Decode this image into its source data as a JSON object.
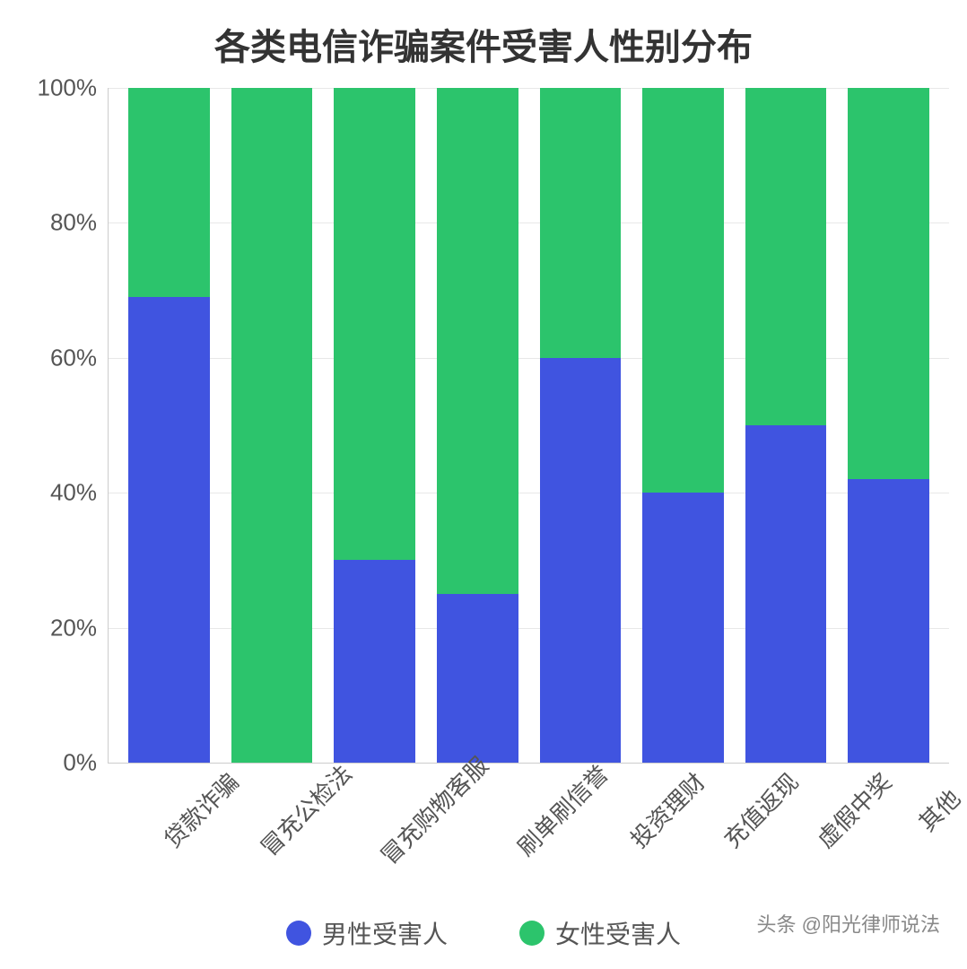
{
  "chart": {
    "type": "stacked-bar",
    "title": "各类电信诈骗案件受害人性别分布",
    "title_fontsize": 40,
    "title_color": "#333333",
    "background_color": "#ffffff",
    "categories": [
      "贷款诈骗",
      "冒充公检法",
      "冒充购物客服",
      "刷单刷信誉",
      "投资理财",
      "充值返现",
      "虚假中奖",
      "其他"
    ],
    "series": [
      {
        "name": "男性受害人",
        "color": "#4054e0",
        "values": [
          69,
          0,
          30,
          25,
          60,
          40,
          50,
          42
        ]
      },
      {
        "name": "女性受害人",
        "color": "#2cc46c",
        "values": [
          31,
          100,
          70,
          75,
          40,
          60,
          50,
          58
        ]
      }
    ],
    "ylim": [
      0,
      100
    ],
    "ytick_step": 20,
    "ytick_suffix": "%",
    "yticks": [
      "0%",
      "20%",
      "40%",
      "60%",
      "80%",
      "100%"
    ],
    "label_fontsize": 26,
    "label_color": "#555555",
    "grid_color": "#e8e8e8",
    "axis_color": "#cccccc",
    "bar_width": 0.76,
    "x_label_rotation": -45
  },
  "legend": {
    "items": [
      {
        "label": "男性受害人",
        "color": "#4054e0"
      },
      {
        "label": "女性受害人",
        "color": "#2cc46c"
      }
    ],
    "fontsize": 28,
    "dot_size": 28
  },
  "watermark": {
    "text": "头条 @阳光律师说法",
    "color": "#888888",
    "fontsize": 22
  }
}
